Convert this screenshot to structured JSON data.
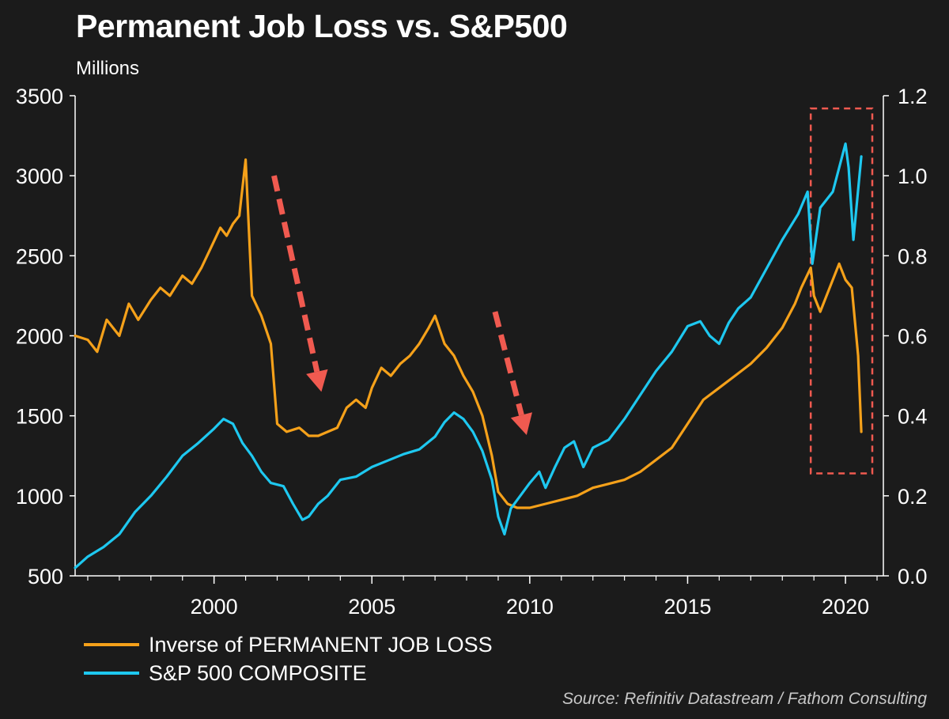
{
  "title": "Permanent Job Loss vs. S&P500",
  "subtitle": "Millions",
  "source": "Source: Refinitiv Datastream / Fathom Consulting",
  "colors": {
    "background": "#1b1b1b",
    "sp500": "#1ec8f0",
    "job_loss": "#f5a11a",
    "arrows": "#f05a50",
    "box": "#f05a50"
  },
  "chart_data": {
    "type": "line",
    "title": "Permanent Job Loss vs. S&P500",
    "xlabel": "",
    "x_ticks": [
      "2000",
      "2005",
      "2010",
      "2015",
      "2020"
    ],
    "xlim": [
      1995.6,
      2021.2
    ],
    "y_left": {
      "label": "",
      "ticks": [
        "500",
        "1000",
        "1500",
        "2000",
        "2500",
        "3000",
        "3500"
      ],
      "lim": [
        500,
        3500
      ]
    },
    "y_right": {
      "label": "",
      "ticks": [
        "0.0",
        "0.2",
        "0.4",
        "0.6",
        "0.8",
        "1.0",
        "1.2"
      ],
      "lim": [
        0.0,
        1.2
      ]
    },
    "legend_position": "bottom-left",
    "grid": false,
    "series": [
      {
        "name": "Inverse of PERMANENT JOB LOSS",
        "axis": "right",
        "color": "#f5a11a",
        "x": [
          1995.6,
          1996.0,
          1996.3,
          1996.6,
          1997.0,
          1997.3,
          1997.6,
          1998.0,
          1998.3,
          1998.6,
          1999.0,
          1999.3,
          1999.6,
          1999.9,
          2000.2,
          2000.4,
          2000.6,
          2000.8,
          2001.0,
          2001.2,
          2001.5,
          2001.8,
          2002.0,
          2002.3,
          2002.7,
          2003.0,
          2003.3,
          2003.6,
          2003.9,
          2004.2,
          2004.5,
          2004.8,
          2005.0,
          2005.3,
          2005.6,
          2005.9,
          2006.2,
          2006.5,
          2006.8,
          2007.0,
          2007.3,
          2007.6,
          2007.9,
          2008.2,
          2008.5,
          2008.8,
          2009.0,
          2009.3,
          2009.6,
          2010.0,
          2010.5,
          2011.0,
          2011.5,
          2012.0,
          2012.5,
          2013.0,
          2013.5,
          2014.0,
          2014.5,
          2015.0,
          2015.5,
          2016.0,
          2016.5,
          2017.0,
          2017.5,
          2018.0,
          2018.4,
          2018.6,
          2018.9,
          2019.0,
          2019.2,
          2019.5,
          2019.8,
          2020.0,
          2020.2,
          2020.4,
          2020.5
        ],
        "y": [
          0.6,
          0.59,
          0.56,
          0.64,
          0.6,
          0.68,
          0.64,
          0.69,
          0.72,
          0.7,
          0.75,
          0.73,
          0.77,
          0.82,
          0.87,
          0.85,
          0.88,
          0.9,
          1.04,
          0.7,
          0.65,
          0.58,
          0.38,
          0.36,
          0.37,
          0.35,
          0.35,
          0.36,
          0.37,
          0.42,
          0.44,
          0.42,
          0.47,
          0.52,
          0.5,
          0.53,
          0.55,
          0.58,
          0.62,
          0.65,
          0.58,
          0.55,
          0.5,
          0.46,
          0.4,
          0.3,
          0.21,
          0.18,
          0.17,
          0.17,
          0.18,
          0.19,
          0.2,
          0.22,
          0.23,
          0.24,
          0.26,
          0.29,
          0.32,
          0.38,
          0.44,
          0.47,
          0.5,
          0.53,
          0.57,
          0.62,
          0.68,
          0.72,
          0.77,
          0.7,
          0.66,
          0.72,
          0.78,
          0.74,
          0.72,
          0.55,
          0.36
        ]
      },
      {
        "name": "S&P 500 COMPOSITE",
        "axis": "left",
        "color": "#1ec8f0",
        "x": [
          1995.6,
          1996.0,
          1996.5,
          1997.0,
          1997.5,
          1998.0,
          1998.5,
          1999.0,
          1999.5,
          2000.0,
          2000.3,
          2000.6,
          2000.9,
          2001.2,
          2001.5,
          2001.8,
          2002.2,
          2002.5,
          2002.8,
          2003.0,
          2003.3,
          2003.6,
          2004.0,
          2004.5,
          2005.0,
          2005.5,
          2006.0,
          2006.5,
          2007.0,
          2007.3,
          2007.6,
          2007.9,
          2008.2,
          2008.5,
          2008.8,
          2009.0,
          2009.2,
          2009.4,
          2009.7,
          2010.0,
          2010.3,
          2010.5,
          2010.8,
          2011.1,
          2011.4,
          2011.7,
          2012.0,
          2012.5,
          2013.0,
          2013.5,
          2014.0,
          2014.5,
          2015.0,
          2015.4,
          2015.7,
          2016.0,
          2016.3,
          2016.6,
          2017.0,
          2017.5,
          2018.0,
          2018.5,
          2018.8,
          2018.95,
          2019.2,
          2019.6,
          2020.0,
          2020.1,
          2020.25,
          2020.5
        ],
        "y": [
          550,
          620,
          680,
          760,
          900,
          1000,
          1120,
          1250,
          1330,
          1420,
          1480,
          1450,
          1330,
          1250,
          1150,
          1080,
          1060,
          950,
          850,
          870,
          950,
          1000,
          1100,
          1120,
          1180,
          1220,
          1260,
          1290,
          1370,
          1460,
          1520,
          1480,
          1400,
          1280,
          1100,
          870,
          760,
          920,
          1000,
          1080,
          1150,
          1050,
          1180,
          1300,
          1340,
          1180,
          1300,
          1350,
          1480,
          1630,
          1780,
          1900,
          2060,
          2090,
          2000,
          1950,
          2080,
          2170,
          2240,
          2420,
          2600,
          2760,
          2900,
          2450,
          2800,
          2900,
          3200,
          3050,
          2600,
          3120
        ]
      }
    ],
    "annotations": [
      {
        "type": "arrow",
        "from_x": 2001.9,
        "from_y_left": 3000,
        "to_x": 2003.4,
        "to_y_left": 1650
      },
      {
        "type": "arrow",
        "from_x": 2008.9,
        "from_y_left": 2150,
        "to_x": 2009.9,
        "to_y_left": 1380
      },
      {
        "type": "dashed-box",
        "x0": 2018.9,
        "x1": 2021.2,
        "y0_left": 1140,
        "y1_left": 3420
      }
    ]
  }
}
